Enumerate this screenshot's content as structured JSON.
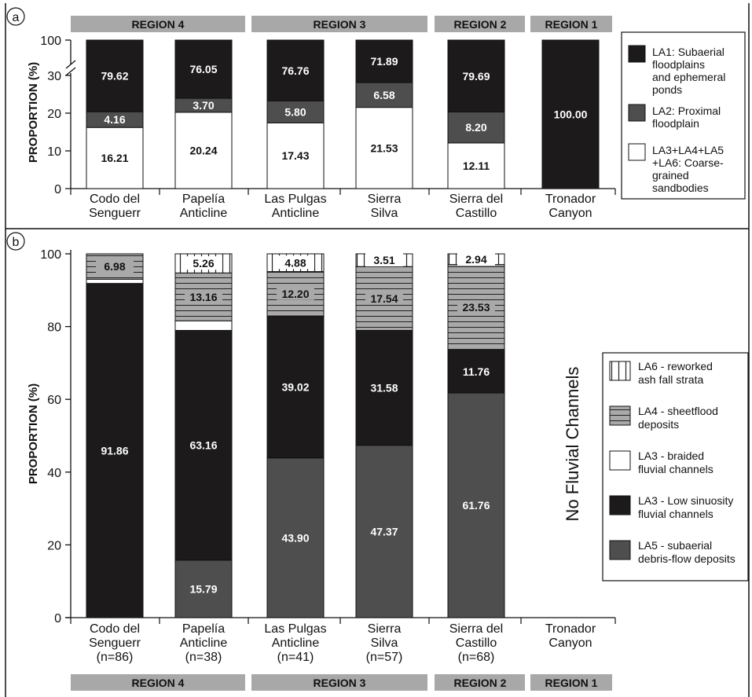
{
  "chart_data": [
    {
      "panel": "a",
      "type": "bar",
      "stacked": true,
      "ylabel": "PROPORTION (%)",
      "y_ticks": [
        "0",
        "10",
        "20",
        "30",
        "100"
      ],
      "axis_break": true,
      "categories": [
        [
          "Codo del",
          "Senguerr"
        ],
        [
          "Papelía",
          "Anticline"
        ],
        [
          "Las Pulgas",
          "Anticline"
        ],
        [
          "Sierra",
          "Silva"
        ],
        [
          "Sierra del",
          "Castillo"
        ],
        [
          "Tronador",
          "Canyon"
        ]
      ],
      "series": [
        {
          "name": "LA3+LA4+LA5+LA6: Coarse-grained sandbodies",
          "color": "#ffffff",
          "values": [
            16.21,
            20.24,
            17.43,
            21.53,
            12.11,
            0
          ]
        },
        {
          "name": "LA2: Proximal floodplain",
          "color": "#4e4e4e",
          "values": [
            4.16,
            3.7,
            5.8,
            6.58,
            8.2,
            0
          ]
        },
        {
          "name": "LA1: Subaerial floodplains and ephemeral ponds",
          "color": "#1c1a1b",
          "values": [
            79.62,
            76.05,
            76.76,
            71.89,
            79.69,
            100.0
          ]
        }
      ],
      "labels": [
        [
          "16.21",
          "4.16",
          "79.62"
        ],
        [
          "20.24",
          "3.70",
          "76.05"
        ],
        [
          "17.43",
          "5.80",
          "76.76"
        ],
        [
          "21.53",
          "6.58",
          "71.89"
        ],
        [
          "12.11",
          "8.20",
          "79.69"
        ],
        [
          "",
          "",
          "100.00"
        ]
      ],
      "legend": [
        {
          "lines": [
            "LA1: Subaerial",
            "floodplains",
            "and ephemeral",
            "ponds"
          ],
          "color": "#1c1a1b"
        },
        {
          "lines": [
            "LA2: Proximal",
            "floodplain"
          ],
          "color": "#4e4e4e"
        },
        {
          "lines": [
            "LA3+LA4+LA5",
            "+LA6: Coarse-",
            "grained",
            "sandbodies"
          ],
          "color": "#ffffff"
        }
      ],
      "regions": [
        "REGION 4",
        "REGION 3",
        "REGION 2",
        "REGION 1"
      ]
    },
    {
      "panel": "b",
      "type": "bar",
      "stacked": true,
      "ylabel": "PROPORTION (%)",
      "ylim": [
        0,
        100
      ],
      "y_ticks": [
        "0",
        "20",
        "40",
        "60",
        "80",
        "100"
      ],
      "categories": [
        [
          "Codo del",
          "Senguerr",
          "(n=86)"
        ],
        [
          "Papelía",
          "Anticline",
          "(n=38)"
        ],
        [
          "Las Pulgas",
          "Anticline",
          "(n=41)"
        ],
        [
          "Sierra",
          "Silva",
          "(n=57)"
        ],
        [
          "Sierra del",
          "Castillo",
          "(n=68)"
        ],
        [
          "Tronador",
          "Canyon"
        ]
      ],
      "series": [
        {
          "name": "LA5 - subaerial debris-flow deposits",
          "color": "#4e4e4e",
          "pattern": "solid",
          "values": [
            0,
            15.79,
            43.9,
            47.37,
            61.76,
            0
          ]
        },
        {
          "name": "LA3 - Low sinuosity fluvial channels",
          "color": "#1c1a1b",
          "pattern": "solid",
          "values": [
            91.86,
            63.16,
            39.02,
            31.58,
            11.76,
            0
          ]
        },
        {
          "name": "LA3 - braided fluvial channels",
          "color": "#ffffff",
          "pattern": "solid",
          "values": [
            1.16,
            2.63,
            0,
            0,
            0,
            0
          ]
        },
        {
          "name": "LA4 - sheetflood deposits",
          "color": "#a9a9a9",
          "pattern": "hlines",
          "values": [
            6.98,
            13.16,
            12.2,
            17.54,
            23.53,
            0
          ]
        },
        {
          "name": "LA6 - reworked ash fall strata",
          "color": "#ffffff",
          "pattern": "vlines",
          "values": [
            0,
            5.26,
            4.88,
            3.51,
            2.94,
            0
          ]
        }
      ],
      "labels": [
        [
          "",
          "91.86",
          "",
          "6.98",
          ""
        ],
        [
          "15.79",
          "63.16",
          "",
          "13.16",
          "5.26"
        ],
        [
          "43.90",
          "39.02",
          "",
          "12.20",
          "4.88"
        ],
        [
          "47.37",
          "31.58",
          "",
          "17.54",
          "3.51"
        ],
        [
          "61.76",
          "11.76",
          "",
          "23.53",
          "2.94"
        ],
        [
          "",
          "",
          "",
          "",
          ""
        ]
      ],
      "legend": [
        {
          "lines": [
            "LA6 - reworked",
            "ash fall strata"
          ],
          "color": "#ffffff",
          "pattern": "vlines"
        },
        {
          "lines": [
            "LA4 - sheetflood",
            "deposits"
          ],
          "color": "#a9a9a9",
          "pattern": "hlines"
        },
        {
          "lines": [
            "LA3 - braided",
            "fluvial channels"
          ],
          "color": "#ffffff",
          "pattern": "solid"
        },
        {
          "lines": [
            "LA3 - Low sinuosity",
            "fluvial channels"
          ],
          "color": "#1c1a1b",
          "pattern": "solid"
        },
        {
          "lines": [
            "LA5 - subaerial",
            "debris-flow deposits"
          ],
          "color": "#4e4e4e",
          "pattern": "solid"
        }
      ],
      "annotation": "No Fluvial Channels",
      "regions": [
        "REGION 4",
        "REGION 3",
        "REGION 2",
        "REGION 1"
      ]
    }
  ]
}
